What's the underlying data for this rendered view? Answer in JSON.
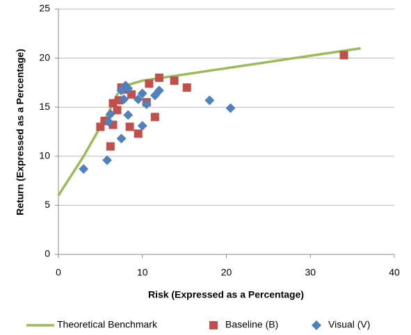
{
  "chart_data": {
    "type": "scatter",
    "x_label": "Risk (Expressed as a Percentage)",
    "y_label": "Return (Expressed as a Percentage)",
    "xlim": [
      0,
      40
    ],
    "xticks": [
      0,
      10,
      20,
      30,
      40
    ],
    "ylim": [
      0,
      25
    ],
    "yticks": [
      0,
      5,
      10,
      15,
      20,
      25
    ],
    "grid": true,
    "legend": "bottom",
    "series": [
      {
        "name": "Theoretical Benchmark",
        "color": "#9bbb59",
        "mark": "line",
        "x": [
          0,
          3,
          6,
          7,
          8,
          10,
          36
        ],
        "values": [
          6,
          10,
          14.5,
          16.3,
          17.2,
          17.7,
          21
        ]
      },
      {
        "name": "Baseline (B)",
        "color": "#c0504d",
        "mark": "square",
        "x": [
          34,
          5,
          5.5,
          6.2,
          6.5,
          6.5,
          7,
          7.2,
          7.5,
          8,
          8.7,
          8.5,
          9.5,
          10.5,
          10.8,
          11.5,
          12,
          13.8,
          15.3
        ],
        "values": [
          20.3,
          13,
          13.6,
          11,
          15.4,
          13.2,
          14.7,
          15.7,
          17,
          16.8,
          16.3,
          13,
          12.3,
          15.5,
          17.4,
          14,
          18,
          17.7,
          17
        ]
      },
      {
        "name": "Visual (V)",
        "color": "#4f81bd",
        "mark": "diamond",
        "x": [
          3,
          5.8,
          6,
          6.2,
          7.5,
          7.5,
          7.8,
          8,
          8.3,
          8.3,
          9.5,
          10,
          10,
          10.5,
          11.5,
          12,
          18,
          20.5
        ],
        "values": [
          8.7,
          9.6,
          13.5,
          14.3,
          11.8,
          16.7,
          15.8,
          17.2,
          16.9,
          14.2,
          15.8,
          16.4,
          13.1,
          15.3,
          16.2,
          16.7,
          15.7,
          14.9
        ]
      }
    ]
  }
}
